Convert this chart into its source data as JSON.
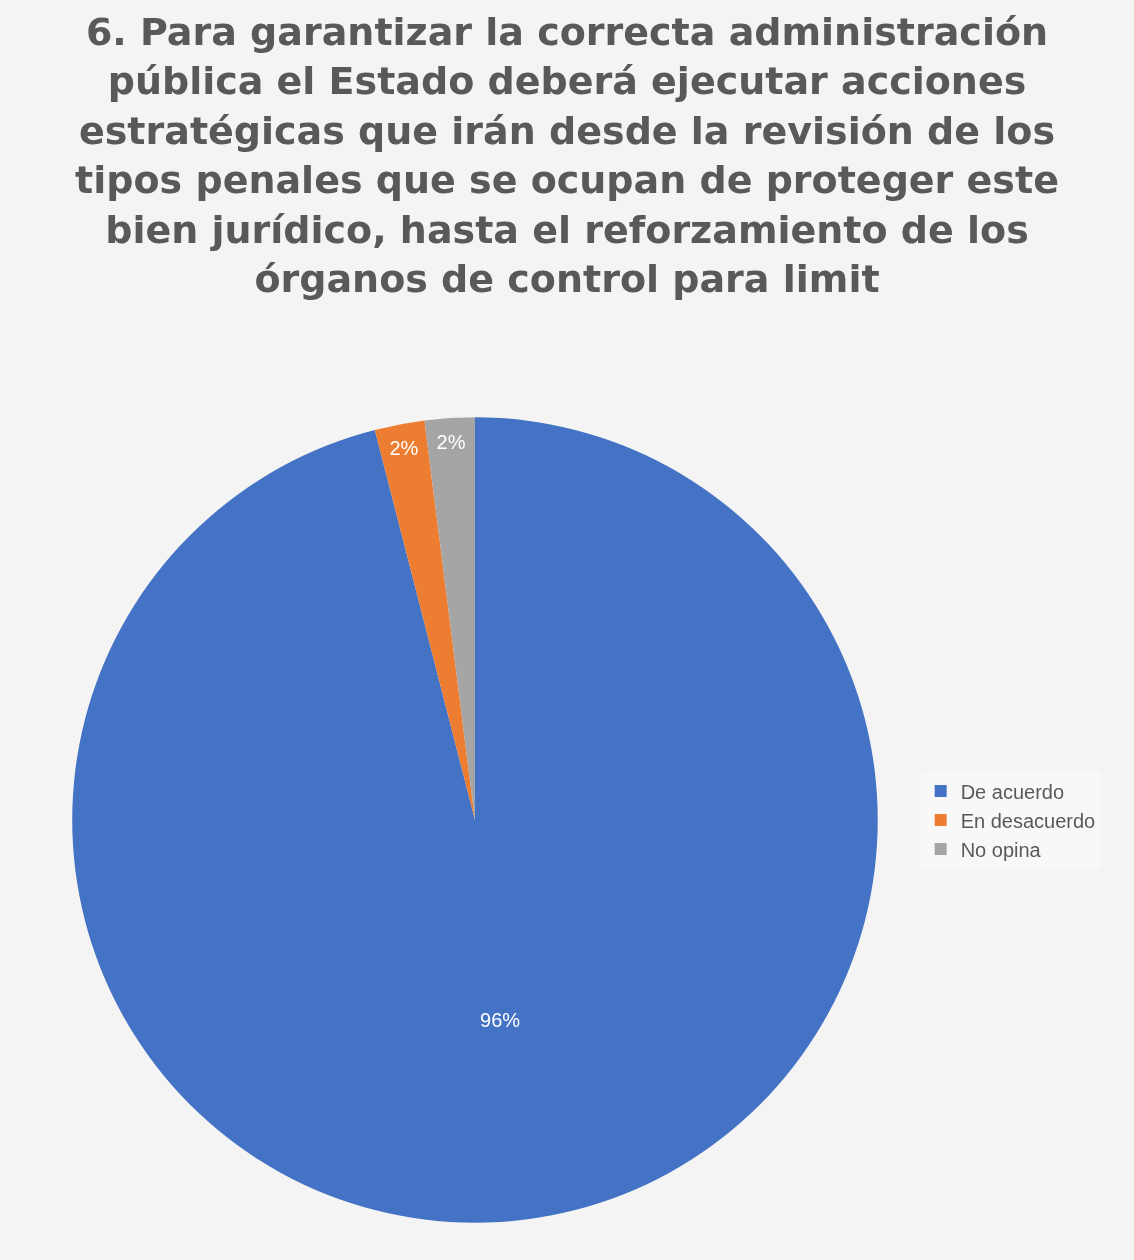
{
  "chart_data": {
    "type": "pie",
    "title": "6. Para garantizar la correcta administración pública el Estado deberá ejecutar acciones estratégicas que irán desde la revisión de los tipos penales que se ocupan de proteger este bien jurídico, hasta el reforzamiento de los órganos de control para limit",
    "categories": [
      "De acuerdo",
      "En desacuerdo",
      "No opina"
    ],
    "values": [
      96,
      2,
      2
    ],
    "value_labels": [
      "96%",
      "2%",
      "2%"
    ],
    "colors": [
      "#4472c4",
      "#ed7d31",
      "#a5a5a5"
    ],
    "legend": "right"
  }
}
